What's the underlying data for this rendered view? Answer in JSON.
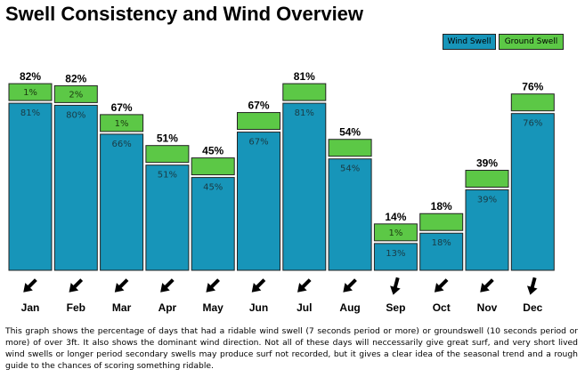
{
  "title": "Swell Consistency and Wind Overview",
  "legend": {
    "wind_swell": "Wind Swell",
    "ground_swell": "Ground Swell"
  },
  "colors": {
    "wind_swell": "#1795b9",
    "ground_swell": "#5cc846",
    "outline": "#222222"
  },
  "chart_data": {
    "type": "bar",
    "stacked": true,
    "title": "Swell Consistency and Wind Overview",
    "categories": [
      "Jan",
      "Feb",
      "Mar",
      "Apr",
      "May",
      "Jun",
      "Jul",
      "Aug",
      "Sep",
      "Oct",
      "Nov",
      "Dec"
    ],
    "series": [
      {
        "name": "Wind Swell",
        "values": [
          81,
          80,
          66,
          51,
          45,
          67,
          81,
          54,
          13,
          18,
          39,
          76
        ],
        "labels": [
          "81%",
          "80%",
          "66%",
          "51%",
          "45%",
          "67%",
          "81%",
          "54%",
          "13%",
          "18%",
          "39%",
          "76%"
        ]
      },
      {
        "name": "Ground Swell",
        "values": [
          1,
          2,
          1,
          0,
          0,
          0,
          0,
          0,
          1,
          0,
          0,
          0
        ],
        "labels": [
          "1%",
          "2%",
          "1%",
          "",
          "",
          "",
          "",
          "",
          "1%",
          "",
          "",
          ""
        ]
      }
    ],
    "totals": [
      82,
      82,
      67,
      51,
      45,
      67,
      81,
      54,
      14,
      18,
      39,
      76
    ],
    "total_labels": [
      "82%",
      "82%",
      "67%",
      "51%",
      "45%",
      "67%",
      "81%",
      "54%",
      "14%",
      "18%",
      "39%",
      "76%"
    ],
    "wind_direction_icons": [
      "arrow-southwest-icon",
      "arrow-southwest-icon",
      "arrow-southwest-icon",
      "arrow-southwest-icon",
      "arrow-southwest-icon",
      "arrow-southwest-icon",
      "arrow-southwest-icon",
      "arrow-southwest-icon",
      "arrow-south-icon",
      "arrow-southwest-icon",
      "arrow-southwest-icon",
      "arrow-south-icon"
    ],
    "wind_direction_angles": [
      225,
      225,
      225,
      225,
      225,
      225,
      225,
      225,
      195,
      225,
      225,
      195
    ],
    "ylim": [
      0,
      100
    ],
    "grid": false,
    "legend_position": "top-right"
  },
  "description": "This graph shows the percentage of days that had a ridable wind swell (7 seconds period or more) or groundswell (10 seconds period or more) of over 3ft. It also shows the dominant wind direction. Not all of these days will neccessarily give great surf, and very short lived wind swells or longer period secondary swells may produce surf not recorded, but it gives a clear idea of the seasonal trend and a rough guide to the chances of scoring something ridable."
}
